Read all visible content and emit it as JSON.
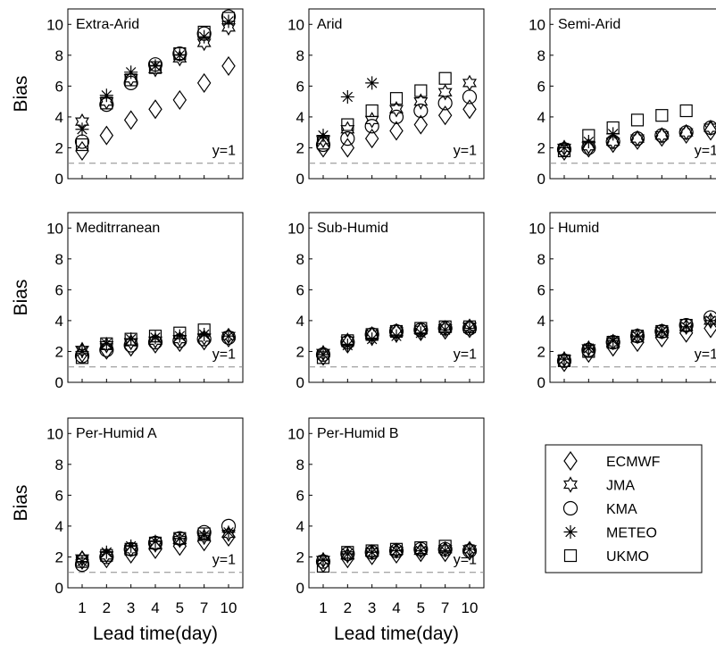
{
  "chart_data": [
    {
      "type": "scatter",
      "title": "Extra-Arid",
      "ylabel": "Bias",
      "xlabel": "",
      "categories": [
        "1",
        "2",
        "3",
        "4",
        "5",
        "7",
        "10"
      ],
      "ylim": [
        0,
        11
      ],
      "yticks": [
        "0",
        "2",
        "4",
        "6",
        "8",
        "10"
      ],
      "reference_line": {
        "y": 1,
        "label": "y=1"
      },
      "series": [
        {
          "name": "ECMWF",
          "values": [
            1.8,
            2.8,
            3.8,
            4.5,
            5.1,
            6.2,
            7.3
          ]
        },
        {
          "name": "JMA",
          "values": [
            3.7,
            5.0,
            6.5,
            7.1,
            7.8,
            8.8,
            9.8
          ]
        },
        {
          "name": "KMA",
          "values": [
            2.4,
            4.8,
            6.2,
            7.4,
            8.1,
            9.4,
            10.5
          ]
        },
        {
          "name": "METEO",
          "values": [
            3.2,
            5.4,
            6.9,
            7.3,
            8.0,
            9.2,
            10.2
          ]
        },
        {
          "name": "UKMO",
          "values": [
            2.2,
            4.9,
            6.4,
            7.2,
            8.1,
            9.5,
            10.4
          ]
        }
      ]
    },
    {
      "type": "scatter",
      "title": "Arid",
      "ylabel": "",
      "xlabel": "",
      "categories": [
        "1",
        "2",
        "3",
        "4",
        "5",
        "7",
        "10"
      ],
      "ylim": [
        0,
        11
      ],
      "yticks": [
        "0",
        "2",
        "4",
        "6",
        "8",
        "10"
      ],
      "reference_line": {
        "y": 1,
        "label": "y=1"
      },
      "series": [
        {
          "name": "ECMWF",
          "values": [
            2.0,
            2.0,
            2.6,
            3.1,
            3.5,
            4.1,
            4.5
          ]
        },
        {
          "name": "JMA",
          "values": [
            2.5,
            3.2,
            3.8,
            4.5,
            5.0,
            5.6,
            6.2
          ]
        },
        {
          "name": "KMA",
          "values": [
            2.2,
            2.6,
            3.4,
            4.0,
            4.4,
            4.9,
            5.3
          ]
        },
        {
          "name": "METEO",
          "values": [
            2.8,
            5.3,
            6.2,
            null,
            null,
            null,
            null
          ]
        },
        {
          "name": "UKMO",
          "values": [
            2.3,
            3.5,
            4.4,
            5.2,
            5.7,
            6.5,
            null
          ]
        }
      ]
    },
    {
      "type": "scatter",
      "title": "Semi-Arid",
      "ylabel": "",
      "xlabel": "",
      "categories": [
        "1",
        "2",
        "3",
        "4",
        "5",
        "7",
        "10"
      ],
      "ylim": [
        0,
        11
      ],
      "yticks": [
        "0",
        "2",
        "4",
        "6",
        "8",
        "10"
      ],
      "reference_line": {
        "y": 1,
        "label": "y=1"
      },
      "series": [
        {
          "name": "ECMWF",
          "values": [
            1.8,
            2.0,
            2.3,
            2.5,
            2.7,
            2.9,
            3.1
          ]
        },
        {
          "name": "JMA",
          "values": [
            2.0,
            2.1,
            2.4,
            2.6,
            2.8,
            3.0,
            3.3
          ]
        },
        {
          "name": "KMA",
          "values": [
            1.9,
            2.0,
            2.4,
            2.6,
            2.8,
            3.0,
            3.3
          ]
        },
        {
          "name": "METEO",
          "values": [
            2.0,
            2.4,
            2.9,
            null,
            null,
            null,
            null
          ]
        },
        {
          "name": "UKMO",
          "values": [
            1.8,
            2.8,
            3.3,
            3.8,
            4.1,
            4.4,
            null
          ]
        }
      ]
    },
    {
      "type": "scatter",
      "title": "Meditrranean",
      "ylabel": "Bias",
      "xlabel": "",
      "categories": [
        "1",
        "2",
        "3",
        "4",
        "5",
        "7",
        "10"
      ],
      "ylim": [
        0,
        11
      ],
      "yticks": [
        "0",
        "2",
        "4",
        "6",
        "8",
        "10"
      ],
      "reference_line": {
        "y": 1,
        "label": "y=1"
      },
      "series": [
        {
          "name": "ECMWF",
          "values": [
            1.9,
            2.1,
            2.3,
            2.5,
            2.6,
            2.7,
            2.9
          ]
        },
        {
          "name": "JMA",
          "values": [
            2.1,
            2.4,
            2.6,
            2.7,
            2.8,
            2.9,
            3.0
          ]
        },
        {
          "name": "KMA",
          "values": [
            1.7,
            2.1,
            2.4,
            2.6,
            2.7,
            2.8,
            2.9
          ]
        },
        {
          "name": "METEO",
          "values": [
            2.0,
            2.5,
            2.8,
            2.9,
            3.0,
            3.1,
            3.0
          ]
        },
        {
          "name": "UKMO",
          "values": [
            1.6,
            2.5,
            2.8,
            3.0,
            3.2,
            3.4,
            null
          ]
        }
      ]
    },
    {
      "type": "scatter",
      "title": "Sub-Humid",
      "ylabel": "",
      "xlabel": "",
      "categories": [
        "1",
        "2",
        "3",
        "4",
        "5",
        "7",
        "10"
      ],
      "ylim": [
        0,
        11
      ],
      "yticks": [
        "0",
        "2",
        "4",
        "6",
        "8",
        "10"
      ],
      "reference_line": {
        "y": 1,
        "label": "y=1"
      },
      "series": [
        {
          "name": "ECMWF",
          "values": [
            1.7,
            2.5,
            3.0,
            3.2,
            3.3,
            3.4,
            3.5
          ]
        },
        {
          "name": "JMA",
          "values": [
            1.9,
            2.7,
            3.1,
            3.3,
            3.4,
            3.5,
            3.6
          ]
        },
        {
          "name": "KMA",
          "values": [
            1.8,
            2.6,
            3.1,
            3.3,
            3.4,
            3.5,
            3.5
          ]
        },
        {
          "name": "METEO",
          "values": [
            1.8,
            2.4,
            2.8,
            3.0,
            3.2,
            3.4,
            3.5
          ]
        },
        {
          "name": "UKMO",
          "values": [
            1.6,
            2.7,
            3.1,
            3.3,
            3.5,
            3.6,
            3.6
          ]
        }
      ]
    },
    {
      "type": "scatter",
      "title": "Humid",
      "ylabel": "",
      "xlabel": "",
      "categories": [
        "1",
        "2",
        "3",
        "4",
        "5",
        "7",
        "10"
      ],
      "ylim": [
        0,
        11
      ],
      "yticks": [
        "0",
        "2",
        "4",
        "6",
        "8",
        "10"
      ],
      "reference_line": {
        "y": 1,
        "label": "y=1"
      },
      "series": [
        {
          "name": "ECMWF",
          "values": [
            1.3,
            1.9,
            2.3,
            2.6,
            2.9,
            3.2,
            3.5
          ]
        },
        {
          "name": "JMA",
          "values": [
            1.5,
            2.2,
            2.6,
            3.0,
            3.3,
            3.6,
            4.0
          ]
        },
        {
          "name": "KMA",
          "values": [
            1.4,
            2.1,
            2.6,
            3.0,
            3.3,
            3.7,
            4.2
          ]
        },
        {
          "name": "METEO",
          "values": [
            1.5,
            2.2,
            2.7,
            3.0,
            3.3,
            3.6,
            4.0
          ]
        },
        {
          "name": "UKMO",
          "values": [
            1.4,
            2.0,
            2.6,
            3.0,
            3.3,
            3.7,
            null
          ]
        }
      ]
    },
    {
      "type": "scatter",
      "title": "Per-Humid A",
      "ylabel": "Bias",
      "xlabel": "Lead time(day)",
      "categories": [
        "1",
        "2",
        "3",
        "4",
        "5",
        "7",
        "10"
      ],
      "ylim": [
        0,
        11
      ],
      "yticks": [
        "0",
        "2",
        "4",
        "6",
        "8",
        "10"
      ],
      "reference_line": {
        "y": 1,
        "label": "y=1"
      },
      "series": [
        {
          "name": "ECMWF",
          "values": [
            1.8,
            1.9,
            2.2,
            2.5,
            2.7,
            3.0,
            3.3
          ]
        },
        {
          "name": "JMA",
          "values": [
            1.9,
            2.1,
            2.5,
            2.8,
            3.1,
            3.3,
            3.5
          ]
        },
        {
          "name": "KMA",
          "values": [
            1.5,
            2.0,
            2.5,
            2.9,
            3.2,
            3.6,
            4.0
          ]
        },
        {
          "name": "METEO",
          "values": [
            1.7,
            2.3,
            2.7,
            3.0,
            3.2,
            3.4,
            3.6
          ]
        },
        {
          "name": "UKMO",
          "values": [
            1.7,
            2.1,
            2.5,
            2.9,
            3.2,
            3.5,
            null
          ]
        }
      ]
    },
    {
      "type": "scatter",
      "title": "Per-Humid B",
      "ylabel": "",
      "xlabel": "Lead time(day)",
      "categories": [
        "1",
        "2",
        "3",
        "4",
        "5",
        "7",
        "10"
      ],
      "ylim": [
        0,
        11
      ],
      "yticks": [
        "0",
        "2",
        "4",
        "6",
        "8",
        "10"
      ],
      "reference_line": {
        "y": 1,
        "label": "y=1"
      },
      "series": [
        {
          "name": "ECMWF",
          "values": [
            1.6,
            1.9,
            2.1,
            2.2,
            2.3,
            2.3,
            2.4
          ]
        },
        {
          "name": "JMA",
          "values": [
            1.8,
            2.1,
            2.3,
            2.4,
            2.4,
            2.5,
            2.5
          ]
        },
        {
          "name": "KMA",
          "values": [
            1.7,
            2.2,
            2.3,
            2.4,
            2.5,
            2.5,
            2.4
          ]
        },
        {
          "name": "METEO",
          "values": [
            1.8,
            2.2,
            2.3,
            2.4,
            2.4,
            2.4,
            2.5
          ]
        },
        {
          "name": "UKMO",
          "values": [
            1.4,
            2.3,
            2.4,
            2.5,
            2.6,
            2.7,
            null
          ]
        }
      ]
    }
  ],
  "legend": {
    "placement": "bottom-right",
    "items": [
      {
        "label": "ECMWF",
        "marker": "diamond"
      },
      {
        "label": "JMA",
        "marker": "hexagram"
      },
      {
        "label": "KMA",
        "marker": "circle"
      },
      {
        "label": "METEO",
        "marker": "asterisk"
      },
      {
        "label": "UKMO",
        "marker": "square"
      }
    ]
  },
  "colors": {
    "ink": "#000000",
    "reference_line": "#888888",
    "background": "#ffffff"
  }
}
